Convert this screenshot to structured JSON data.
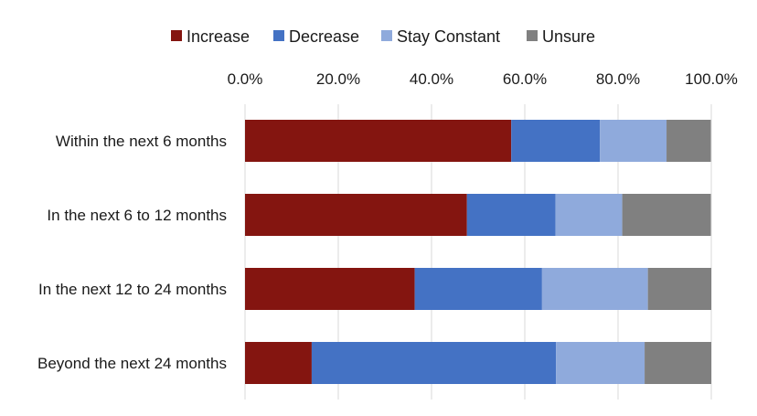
{
  "chart_data": {
    "type": "bar",
    "orientation": "horizontal",
    "stacked": true,
    "categories": [
      "Within the next 6 months",
      "In the next 6 to 12 months",
      "In the next 12 to 24 months",
      "Beyond the next 24 months"
    ],
    "series": [
      {
        "name": "Increase",
        "color": "#841510",
        "values": [
          57.1,
          47.6,
          36.4,
          14.3
        ]
      },
      {
        "name": "Decrease",
        "color": "#4472C4",
        "values": [
          19.0,
          19.0,
          27.3,
          52.4
        ]
      },
      {
        "name": "Stay Constant",
        "color": "#8FAADC",
        "values": [
          14.3,
          14.3,
          22.7,
          19.0
        ]
      },
      {
        "name": "Unsure",
        "color": "#808080",
        "values": [
          9.5,
          19.0,
          13.6,
          14.3
        ]
      }
    ],
    "xlim": [
      0,
      100
    ],
    "xticks": [
      "0.0%",
      "20.0%",
      "40.0%",
      "60.0%",
      "80.0%",
      "100.0%"
    ],
    "axis_position": "top",
    "legend_position": "top",
    "grid": true,
    "title": "",
    "xlabel": "",
    "ylabel": ""
  }
}
